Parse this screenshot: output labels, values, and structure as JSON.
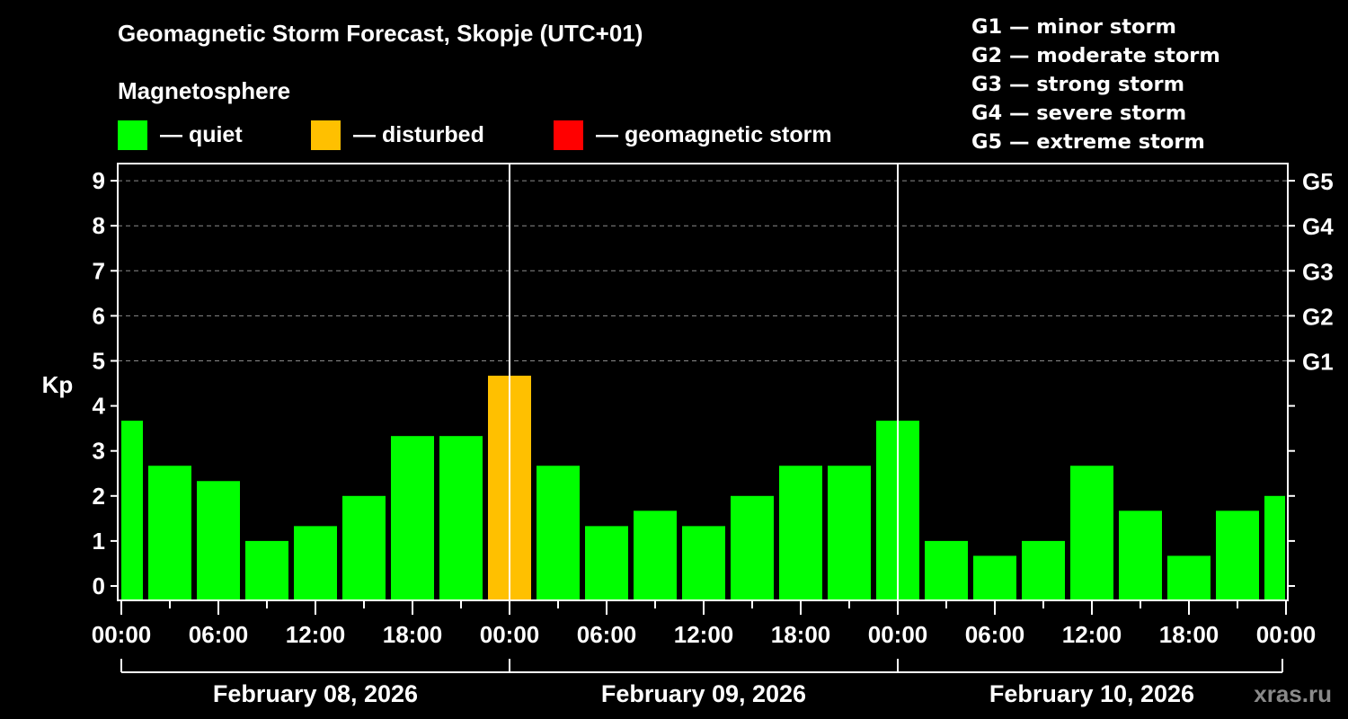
{
  "header": {
    "title": "Geomagnetic Storm Forecast, Skopje (UTC+01)",
    "subtitle": "Magnetosphere"
  },
  "legend": [
    {
      "label": "— quiet",
      "color": "#00ff00"
    },
    {
      "label": "— disturbed",
      "color": "#ffc000"
    },
    {
      "label": "— geomagnetic storm",
      "color": "#ff0000"
    }
  ],
  "g_scale": [
    {
      "level": "G1",
      "label": "G1 — minor storm"
    },
    {
      "level": "G2",
      "label": "G2 — moderate storm"
    },
    {
      "level": "G3",
      "label": "G3 — strong storm"
    },
    {
      "level": "G4",
      "label": "G4 — severe storm"
    },
    {
      "level": "G5",
      "label": "G5 — extreme storm"
    }
  ],
  "watermark": "xras.ru",
  "chart_data": {
    "type": "bar",
    "title": "Geomagnetic Storm Forecast, Skopje (UTC+01)",
    "ylabel": "Kp",
    "ylim": [
      0,
      9
    ],
    "yticks": [
      0,
      1,
      2,
      3,
      4,
      5,
      6,
      7,
      8,
      9
    ],
    "right_axis_labels": [
      {
        "kp": 5,
        "label": "G1"
      },
      {
        "kp": 6,
        "label": "G2"
      },
      {
        "kp": 7,
        "label": "G3"
      },
      {
        "kp": 8,
        "label": "G4"
      },
      {
        "kp": 9,
        "label": "G5"
      }
    ],
    "grid": "dashed horizontal at Kp 5-9",
    "xtick_labels": [
      "00:00",
      "06:00",
      "12:00",
      "18:00",
      "00:00",
      "06:00",
      "12:00",
      "18:00",
      "00:00",
      "06:00",
      "12:00",
      "18:00",
      "00:00"
    ],
    "dates": [
      "February 08, 2026",
      "February 09, 2026",
      "February 10, 2026"
    ],
    "bar_interval_hours": 3,
    "categories": [
      "02-08 00:00",
      "02-08 03:00",
      "02-08 06:00",
      "02-08 09:00",
      "02-08 12:00",
      "02-08 15:00",
      "02-08 18:00",
      "02-08 21:00",
      "02-09 00:00",
      "02-09 03:00",
      "02-09 06:00",
      "02-09 09:00",
      "02-09 12:00",
      "02-09 15:00",
      "02-09 18:00",
      "02-09 21:00",
      "02-10 00:00",
      "02-10 03:00",
      "02-10 06:00",
      "02-10 09:00",
      "02-10 12:00",
      "02-10 15:00",
      "02-10 18:00",
      "02-10 21:00",
      "02-11 00:00"
    ],
    "values": [
      3.67,
      2.67,
      2.33,
      1.0,
      1.33,
      2.0,
      3.33,
      3.33,
      4.67,
      2.67,
      1.33,
      1.67,
      1.33,
      2.0,
      2.67,
      2.67,
      3.67,
      1.0,
      0.67,
      1.0,
      2.67,
      1.67,
      0.67,
      1.67,
      2.0
    ],
    "status": [
      "quiet",
      "quiet",
      "quiet",
      "quiet",
      "quiet",
      "quiet",
      "quiet",
      "quiet",
      "disturbed",
      "quiet",
      "quiet",
      "quiet",
      "quiet",
      "quiet",
      "quiet",
      "quiet",
      "quiet",
      "quiet",
      "quiet",
      "quiet",
      "quiet",
      "quiet",
      "quiet",
      "quiet",
      "quiet"
    ],
    "colors": {
      "quiet": "#00ff00",
      "disturbed": "#ffc000",
      "storm": "#ff0000"
    }
  }
}
